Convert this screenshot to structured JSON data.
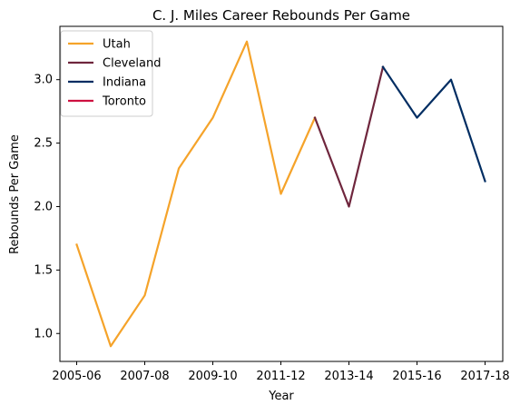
{
  "chart_data": {
    "type": "line",
    "title": "C. J. Miles Career Rebounds Per Game",
    "xlabel": "Year",
    "ylabel": "Rebounds Per Game",
    "x_categories": [
      "2005-06",
      "2006-07",
      "2007-08",
      "2008-09",
      "2009-10",
      "2010-11",
      "2011-12",
      "2012-13",
      "2013-14",
      "2014-15",
      "2015-16",
      "2016-17",
      "2017-18"
    ],
    "x_tick_labels": [
      "2005-06",
      "2007-08",
      "2009-10",
      "2011-12",
      "2013-14",
      "2015-16",
      "2017-18"
    ],
    "y_ticks": [
      "1.0",
      "1.5",
      "2.0",
      "2.5",
      "3.0"
    ],
    "ylim": [
      0.78,
      3.42
    ],
    "grid": false,
    "legend_position": "top-left",
    "series": [
      {
        "name": "Utah",
        "color": "#f5a32a",
        "points": [
          {
            "x": "2005-06",
            "y": 1.7
          },
          {
            "x": "2006-07",
            "y": 0.9
          },
          {
            "x": "2007-08",
            "y": 1.3
          },
          {
            "x": "2008-09",
            "y": 2.3
          },
          {
            "x": "2009-10",
            "y": 2.7
          },
          {
            "x": "2010-11",
            "y": 3.3
          },
          {
            "x": "2011-12",
            "y": 2.1
          },
          {
            "x": "2012-13",
            "y": 2.7
          }
        ]
      },
      {
        "name": "Cleveland",
        "color": "#6f263d",
        "points": [
          {
            "x": "2012-13",
            "y": 2.7
          },
          {
            "x": "2013-14",
            "y": 2.0
          },
          {
            "x": "2014-15",
            "y": 3.1
          }
        ]
      },
      {
        "name": "Indiana",
        "color": "#002d62",
        "points": [
          {
            "x": "2014-15",
            "y": 3.1
          },
          {
            "x": "2015-16",
            "y": 2.7
          },
          {
            "x": "2016-17",
            "y": 3.0
          },
          {
            "x": "2017-18",
            "y": 2.2
          }
        ]
      },
      {
        "name": "Toronto",
        "color": "#ce1141",
        "points": []
      }
    ]
  }
}
